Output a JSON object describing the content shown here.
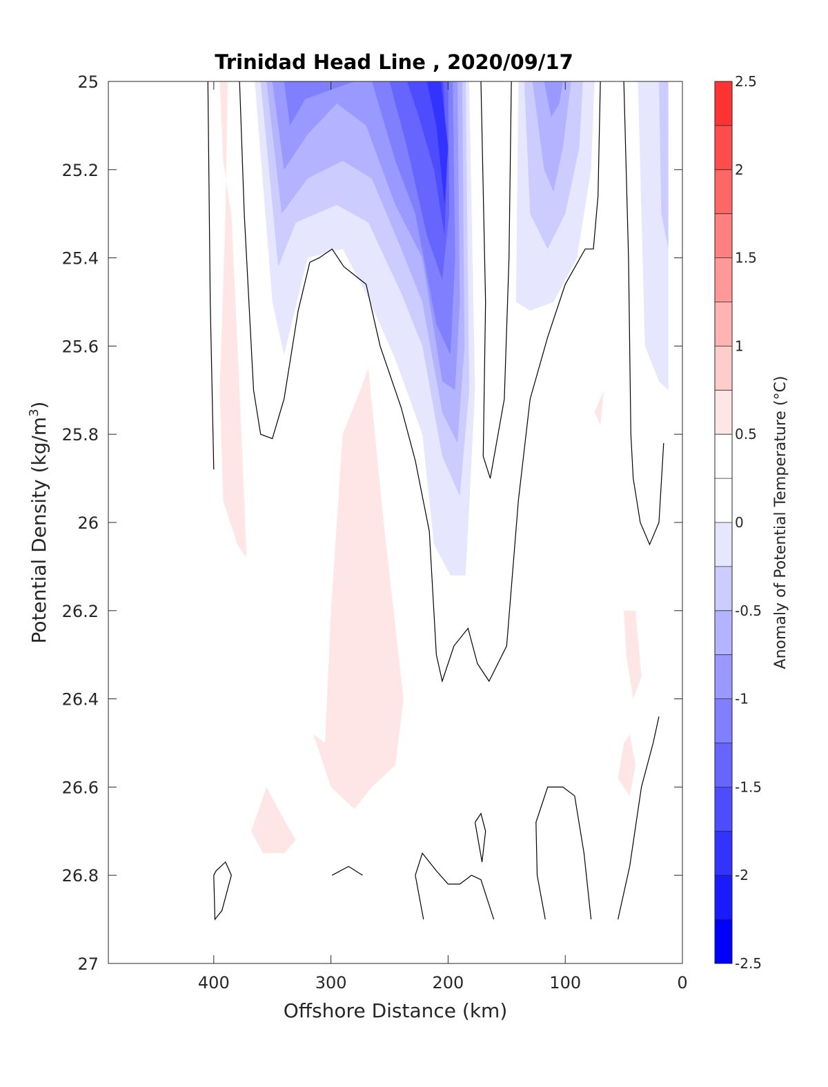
{
  "chart_data": {
    "type": "heatmap",
    "subtype": "filled-contour section",
    "title": "Trinidad Head Line , 2020/09/17",
    "xlabel": "Offshore Distance (km)",
    "ylabel": "Potential Density (kg/m",
    "ylabel_superscript": "3",
    "ylabel_suffix": ")",
    "xlim": [
      490,
      0
    ],
    "x_reversed": true,
    "ylim": [
      25,
      27
    ],
    "y_reversed": true,
    "x_ticks": [
      400,
      300,
      200,
      100,
      0
    ],
    "y_ticks": [
      25,
      25.2,
      25.4,
      25.6,
      25.8,
      26,
      26.2,
      26.4,
      26.6,
      26.8,
      27
    ],
    "y_tick_labels": [
      "25",
      "25.2",
      "25.4",
      "25.6",
      "25.8",
      "26",
      "26.2",
      "26.4",
      "26.6",
      "26.8",
      "27"
    ],
    "colorbar": {
      "label": "Anomaly of Potential Temperature (°C)",
      "range": [
        -2.5,
        2.5
      ],
      "ticks": [
        2.5,
        2,
        1.5,
        1,
        0.5,
        0,
        -0.5,
        -1,
        -1.5,
        -2,
        -2.5
      ],
      "tick_labels": [
        "2.5",
        "2",
        "1.5",
        "1",
        "0.5",
        "0",
        "-0.5",
        "-1",
        "-1.5",
        "-2",
        "-2.5"
      ],
      "levels": [
        -2.5,
        -2.25,
        -2,
        -1.75,
        -1.5,
        -1.25,
        -1,
        -0.75,
        -0.5,
        -0.25,
        0,
        0.25,
        0.5,
        0.75,
        1,
        1.25,
        1.5,
        1.75,
        2,
        2.25,
        2.5
      ],
      "colors": [
        "#0000ff",
        "#1a1aff",
        "#3333ff",
        "#4d4dff",
        "#6666ff",
        "#8080ff",
        "#9999ff",
        "#b3b3ff",
        "#ccccff",
        "#e6e6ff",
        "#ffffff",
        "#ffffff",
        "#ffe6e6",
        "#ffcccc",
        "#ffb3b3",
        "#ff9999",
        "#ff8080",
        "#ff6666",
        "#ff4d4d",
        "#ff3333",
        "#ff1a1a",
        "#ff0000"
      ]
    },
    "regions": [
      {
        "anomaly": -0.25,
        "color": "#e6e6ff",
        "points": [
          [
            365,
            25
          ],
          [
            350,
            25.5
          ],
          [
            340,
            25.62
          ],
          [
            320,
            25.4
          ],
          [
            290,
            25.38
          ],
          [
            270,
            25.48
          ],
          [
            245,
            25.63
          ],
          [
            222,
            25.8
          ],
          [
            212,
            26.05
          ],
          [
            198,
            26.12
          ],
          [
            185,
            26.12
          ],
          [
            177,
            25.7
          ],
          [
            182,
            25
          ],
          [
            365,
            25
          ]
        ]
      },
      {
        "anomaly": -0.5,
        "color": "#ccccff",
        "points": [
          [
            360,
            25
          ],
          [
            345,
            25.42
          ],
          [
            330,
            25.32
          ],
          [
            295,
            25.28
          ],
          [
            268,
            25.32
          ],
          [
            240,
            25.48
          ],
          [
            222,
            25.6
          ],
          [
            205,
            25.85
          ],
          [
            190,
            25.94
          ],
          [
            182,
            25.7
          ],
          [
            185,
            25
          ],
          [
            360,
            25
          ]
        ]
      },
      {
        "anomaly": -0.75,
        "color": "#b3b3ff",
        "points": [
          [
            355,
            25
          ],
          [
            342,
            25.3
          ],
          [
            320,
            25.22
          ],
          [
            290,
            25.18
          ],
          [
            265,
            25.22
          ],
          [
            240,
            25.38
          ],
          [
            222,
            25.5
          ],
          [
            205,
            25.75
          ],
          [
            192,
            25.82
          ],
          [
            186,
            25.6
          ],
          [
            188,
            25
          ],
          [
            355,
            25
          ]
        ]
      },
      {
        "anomaly": -1.0,
        "color": "#9999ff",
        "points": [
          [
            350,
            25
          ],
          [
            340,
            25.2
          ],
          [
            320,
            25.12
          ],
          [
            295,
            25.05
          ],
          [
            270,
            25.1
          ],
          [
            245,
            25.28
          ],
          [
            222,
            25.4
          ],
          [
            205,
            25.68
          ],
          [
            194,
            25.7
          ],
          [
            190,
            25.5
          ],
          [
            192,
            25
          ],
          [
            350,
            25
          ]
        ]
      },
      {
        "anomaly": -1.25,
        "color": "#8080ff",
        "points": [
          [
            340,
            25
          ],
          [
            335,
            25.1
          ],
          [
            322,
            25.04
          ],
          [
            280,
            25
          ],
          [
            340,
            25
          ]
        ]
      },
      {
        "anomaly": -1.25,
        "color": "#8080ff",
        "points": [
          [
            265,
            25
          ],
          [
            245,
            25.18
          ],
          [
            228,
            25.3
          ],
          [
            210,
            25.55
          ],
          [
            198,
            25.62
          ],
          [
            194,
            25.4
          ],
          [
            196,
            25
          ],
          [
            265,
            25
          ]
        ]
      },
      {
        "anomaly": -1.5,
        "color": "#6666ff",
        "points": [
          [
            250,
            25
          ],
          [
            235,
            25.15
          ],
          [
            218,
            25.35
          ],
          [
            205,
            25.45
          ],
          [
            199,
            25.3
          ],
          [
            200,
            25
          ],
          [
            250,
            25
          ]
        ]
      },
      {
        "anomaly": -1.75,
        "color": "#4d4dff",
        "points": [
          [
            235,
            25
          ],
          [
            225,
            25.08
          ],
          [
            212,
            25.2
          ],
          [
            203,
            25.35
          ],
          [
            201,
            25.2
          ],
          [
            204,
            25
          ],
          [
            235,
            25
          ]
        ]
      },
      {
        "anomaly": -2.0,
        "color": "#3333ff",
        "points": [
          [
            218,
            25
          ],
          [
            210,
            25.1
          ],
          [
            203,
            25.28
          ],
          [
            200,
            25.15
          ],
          [
            206,
            25
          ],
          [
            218,
            25
          ]
        ]
      },
      {
        "anomaly": -0.25,
        "color": "#e6e6ff",
        "points": [
          [
            140,
            25
          ],
          [
            142,
            25.5
          ],
          [
            130,
            25.52
          ],
          [
            110,
            25.5
          ],
          [
            90,
            25.4
          ],
          [
            78,
            25.2
          ],
          [
            75,
            25
          ],
          [
            140,
            25
          ]
        ]
      },
      {
        "anomaly": -0.5,
        "color": "#ccccff",
        "points": [
          [
            135,
            25
          ],
          [
            130,
            25.3
          ],
          [
            115,
            25.38
          ],
          [
            100,
            25.3
          ],
          [
            88,
            25.15
          ],
          [
            85,
            25
          ],
          [
            135,
            25
          ]
        ]
      },
      {
        "anomaly": -0.75,
        "color": "#b3b3ff",
        "points": [
          [
            128,
            25
          ],
          [
            118,
            25.2
          ],
          [
            110,
            25.25
          ],
          [
            102,
            25.15
          ],
          [
            95,
            25
          ],
          [
            128,
            25
          ]
        ]
      },
      {
        "anomaly": -1.0,
        "color": "#9999ff",
        "points": [
          [
            118,
            25
          ],
          [
            112,
            25.08
          ],
          [
            105,
            25.05
          ],
          [
            102,
            25
          ],
          [
            118,
            25
          ]
        ]
      },
      {
        "anomaly": -0.25,
        "color": "#e6e6ff",
        "points": [
          [
            38,
            25
          ],
          [
            32,
            25.6
          ],
          [
            20,
            25.68
          ],
          [
            12,
            25.7
          ],
          [
            12,
            25
          ],
          [
            38,
            25
          ]
        ]
      },
      {
        "anomaly": -0.5,
        "color": "#ccccff",
        "points": [
          [
            20,
            25
          ],
          [
            18,
            25.3
          ],
          [
            12,
            25.38
          ],
          [
            12,
            25
          ],
          [
            20,
            25
          ]
        ]
      },
      {
        "anomaly": 0.25,
        "color": "#ffe6e6",
        "points": [
          [
            395,
            25
          ],
          [
            392,
            25.18
          ],
          [
            385,
            25.3
          ],
          [
            378,
            25.7
          ],
          [
            372,
            26.08
          ],
          [
            380,
            26.05
          ],
          [
            392,
            25.95
          ],
          [
            395,
            25.7
          ],
          [
            390,
            25.3
          ],
          [
            388,
            25
          ],
          [
            395,
            25
          ]
        ]
      },
      {
        "anomaly": 0.25,
        "color": "#ffe6e6",
        "points": [
          [
            268,
            25.65
          ],
          [
            275,
            25.7
          ],
          [
            290,
            25.8
          ],
          [
            300,
            26.2
          ],
          [
            305,
            26.5
          ],
          [
            315,
            26.48
          ],
          [
            300,
            26.6
          ],
          [
            280,
            26.65
          ],
          [
            265,
            26.6
          ],
          [
            245,
            26.55
          ],
          [
            238,
            26.4
          ],
          [
            255,
            26.0
          ],
          [
            268,
            25.65
          ]
        ]
      },
      {
        "anomaly": 0.25,
        "color": "#ffe6e6",
        "points": [
          [
            345,
            26.65
          ],
          [
            355,
            26.6
          ],
          [
            368,
            26.7
          ],
          [
            358,
            26.75
          ],
          [
            340,
            26.75
          ],
          [
            330,
            26.72
          ],
          [
            345,
            26.65
          ]
        ]
      },
      {
        "anomaly": 0.25,
        "color": "#ffe6e6",
        "points": [
          [
            75,
            25.75
          ],
          [
            67,
            25.7
          ],
          [
            70,
            25.78
          ],
          [
            75,
            25.75
          ]
        ]
      },
      {
        "anomaly": 0.25,
        "color": "#ffe6e6",
        "points": [
          [
            50,
            26.2
          ],
          [
            40,
            26.2
          ],
          [
            35,
            26.35
          ],
          [
            42,
            26.4
          ],
          [
            48,
            26.3
          ],
          [
            50,
            26.2
          ]
        ]
      },
      {
        "anomaly": 0.25,
        "color": "#ffe6e6",
        "points": [
          [
            50,
            26.5
          ],
          [
            45,
            26.48
          ],
          [
            40,
            26.55
          ],
          [
            45,
            26.62
          ],
          [
            55,
            26.58
          ],
          [
            50,
            26.5
          ]
        ]
      }
    ],
    "zero_contours": [
      [
        [
          405,
          25
        ],
        [
          403,
          25.5
        ],
        [
          400,
          25.88
        ]
      ],
      [
        [
          378,
          25
        ],
        [
          374,
          25.3
        ],
        [
          366,
          25.7
        ],
        [
          360,
          25.8
        ],
        [
          350,
          25.81
        ],
        [
          340,
          25.72
        ],
        [
          328,
          25.52
        ],
        [
          318,
          25.41
        ],
        [
          310,
          25.4
        ],
        [
          299,
          25.38
        ],
        [
          289,
          25.42
        ],
        [
          270,
          25.46
        ],
        [
          258,
          25.6
        ],
        [
          240,
          25.74
        ],
        [
          228,
          25.86
        ],
        [
          216,
          26.02
        ],
        [
          210,
          26.3
        ],
        [
          205,
          26.36
        ],
        [
          195,
          26.28
        ],
        [
          183,
          26.24
        ],
        [
          175,
          26.32
        ],
        [
          165,
          26.36
        ],
        [
          150,
          26.28
        ],
        [
          140,
          25.95
        ],
        [
          130,
          25.72
        ],
        [
          115,
          25.58
        ],
        [
          100,
          25.46
        ],
        [
          83,
          25.38
        ],
        [
          76,
          25.38
        ],
        [
          72,
          25.26
        ],
        [
          70,
          25
        ]
      ],
      [
        [
          172,
          25
        ],
        [
          168,
          25.5
        ],
        [
          170,
          25.85
        ],
        [
          164,
          25.9
        ],
        [
          152,
          25.72
        ],
        [
          148,
          25.4
        ],
        [
          146,
          25
        ]
      ],
      [
        [
          50,
          25
        ],
        [
          46,
          25.4
        ],
        [
          44,
          25.8
        ],
        [
          42,
          25.9
        ],
        [
          36,
          26.0
        ],
        [
          28,
          26.05
        ],
        [
          20,
          26.0
        ],
        [
          16,
          25.82
        ]
      ],
      [
        [
          400,
          26.8
        ],
        [
          399,
          26.9
        ],
        [
          393,
          26.88
        ],
        [
          385,
          26.8
        ],
        [
          390,
          26.77
        ],
        [
          398,
          26.79
        ],
        [
          400,
          26.8
        ]
      ],
      [
        [
          299,
          26.8
        ],
        [
          285,
          26.78
        ],
        [
          273,
          26.8
        ]
      ],
      [
        [
          228,
          26.8
        ],
        [
          221,
          26.9
        ]
      ],
      [
        [
          228,
          26.8
        ],
        [
          222,
          26.75
        ],
        [
          210,
          26.79
        ],
        [
          200,
          26.82
        ],
        [
          190,
          26.82
        ],
        [
          180,
          26.8
        ],
        [
          172,
          26.81
        ],
        [
          161,
          26.9
        ]
      ],
      [
        [
          177,
          26.68
        ],
        [
          171,
          26.77
        ],
        [
          168,
          26.7
        ],
        [
          172,
          26.66
        ],
        [
          177,
          26.68
        ]
      ],
      [
        [
          117,
          26.9
        ],
        [
          124,
          26.8
        ],
        [
          125,
          26.68
        ],
        [
          115,
          26.6
        ],
        [
          102,
          26.6
        ],
        [
          92,
          26.62
        ],
        [
          84,
          26.75
        ],
        [
          78,
          26.9
        ]
      ],
      [
        [
          55,
          26.9
        ],
        [
          45,
          26.78
        ],
        [
          35,
          26.6
        ],
        [
          25,
          26.5
        ],
        [
          20,
          26.44
        ]
      ]
    ]
  }
}
